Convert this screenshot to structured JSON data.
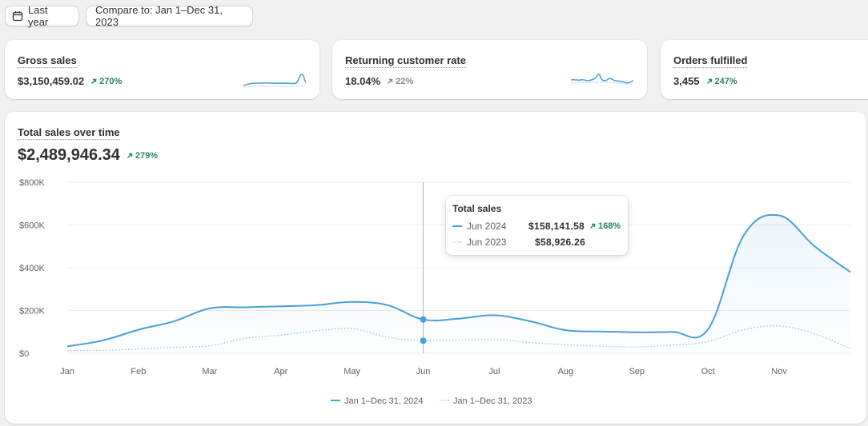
{
  "toolbar": {
    "date_range_label": "Last year",
    "compare_label": "Compare to: Jan 1–Dec 31, 2023"
  },
  "metrics": [
    {
      "title": "Gross sales",
      "value": "$3,150,459.02",
      "delta": "270%",
      "trend": "up"
    },
    {
      "title": "Returning customer rate",
      "value": "18.04%",
      "delta": "22%",
      "trend": "neutral"
    },
    {
      "title": "Orders fulfilled",
      "value": "3,455",
      "delta": "247%",
      "trend": "up"
    }
  ],
  "main_card": {
    "title": "Total sales over time",
    "value": "$2,489,946.34",
    "delta": "279%"
  },
  "tooltip": {
    "title": "Total sales",
    "current_period": "Jun 2024",
    "current_value": "$158,141.58",
    "current_delta": "168%",
    "previous_period": "Jun 2023",
    "previous_value": "$58,926.26"
  },
  "legend": {
    "current": "Jan 1–Dec 31, 2024",
    "previous": "Jan 1–Dec 31, 2023"
  },
  "colors": {
    "primary_series": "#4a9fd8",
    "comparison_series": "#8fc6e8",
    "positive": "#29845a"
  },
  "chart_data": {
    "type": "area",
    "title": "Total sales over time",
    "categories": [
      "Jan",
      "Feb",
      "Mar",
      "Apr",
      "May",
      "Jun",
      "Jul",
      "Aug",
      "Sep",
      "Oct",
      "Nov"
    ],
    "y_ticks": [
      "$0",
      "$200K",
      "$400K",
      "$600K",
      "$800K"
    ],
    "ylim": [
      0,
      800000
    ],
    "x": [
      0,
      0.5,
      1,
      1.5,
      2,
      2.5,
      3,
      3.5,
      4,
      4.5,
      5,
      5.5,
      6,
      6.5,
      7,
      7.5,
      8,
      8.5,
      9,
      9.5,
      10,
      10.5,
      11
    ],
    "series": [
      {
        "name": "Jan 1–Dec 31, 2024",
        "style": "solid",
        "values": [
          32000,
          60000,
          110000,
          150000,
          210000,
          215000,
          220000,
          225000,
          240000,
          225000,
          158000,
          162000,
          178000,
          150000,
          108000,
          102000,
          98000,
          100000,
          112000,
          550000,
          645000,
          500000,
          380000
        ]
      },
      {
        "name": "Jan 1–Dec 31, 2023",
        "style": "dotted",
        "values": [
          12000,
          14000,
          20000,
          28000,
          35000,
          70000,
          85000,
          105000,
          115000,
          75000,
          58926,
          62000,
          65000,
          50000,
          40000,
          33000,
          30000,
          38000,
          55000,
          110000,
          128000,
          90000,
          22000
        ]
      }
    ],
    "highlight": {
      "category": "Jun",
      "index": 10
    },
    "grid": true,
    "legend_position": "bottom"
  }
}
